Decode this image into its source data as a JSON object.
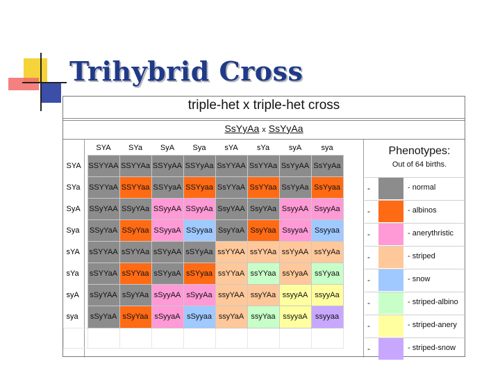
{
  "slide": {
    "title": "Trihybrid Cross"
  },
  "sheet": {
    "cross_title": "triple-het x triple-het cross",
    "parent1": "SsYyAa",
    "cross_symbol": "x",
    "parent2": "SsYyAa"
  },
  "phenotypes": {
    "title": "Phenotypes:",
    "subtitle": "Out of 64 births.",
    "items": [
      {
        "dash": "-",
        "label": "- normal",
        "color": "#8c8c8c"
      },
      {
        "dash": "-",
        "label": "- albinos",
        "color": "#ff6a14"
      },
      {
        "dash": "-",
        "label": "- anerythristic",
        "color": "#ff9ad6"
      },
      {
        "dash": "-",
        "label": "- striped",
        "color": "#ffc89a"
      },
      {
        "dash": "-",
        "label": "- snow",
        "color": "#9fc9ff"
      },
      {
        "dash": "-",
        "label": "- striped-albino",
        "color": "#c8ffc8"
      },
      {
        "dash": "-",
        "label": "- striped-anery",
        "color": "#ffffa0"
      },
      {
        "dash": "-",
        "label": "- striped-snow",
        "color": "#c8a8ff"
      }
    ]
  },
  "grid": {
    "col_headers": [
      "SYA",
      "SYa",
      "SyA",
      "Sya",
      "sYA",
      "sYa",
      "syA",
      "sya"
    ],
    "row_headers": [
      "SYA",
      "SYa",
      "SyA",
      "Sya",
      "sYA",
      "sYa",
      "syA",
      "sya"
    ],
    "rows": [
      [
        "SSYYAA",
        "SSYYAa",
        "SSYyAA",
        "SSYyAa",
        "SsYYAA",
        "SsYYAa",
        "SsYyAA",
        "SsYyAa"
      ],
      [
        "SSYYaA",
        "SSYYaa",
        "SSYyaA",
        "SSYyaa",
        "SsYYaA",
        "SsYYaa",
        "SsYyAa",
        "SsYyaa"
      ],
      [
        "SSyYAA",
        "SSyYAa",
        "SSyyAA",
        "SSyyAa",
        "SsyYAA",
        "SsyYAa",
        "SsyyAA",
        "SsyyAa"
      ],
      [
        "SSyYaA",
        "SSyYaa",
        "SSyyaA",
        "SSyyaa",
        "SsyYaA",
        "SsyYaa",
        "SsyyaA",
        "Ssyyaa"
      ],
      [
        "sSYYAA",
        "sSYYAa",
        "sSYyAA",
        "sSYyAa",
        "ssYYAA",
        "ssYYAa",
        "ssYyAA",
        "ssYyAa"
      ],
      [
        "sSYYaA",
        "sSYYaa",
        "sSYyaA",
        "sSYyaa",
        "ssYYaA",
        "ssYYaa",
        "ssYyaA",
        "ssYyaa"
      ],
      [
        "sSyYAA",
        "sSyYAa",
        "sSyyAA",
        "sSyyAa",
        "ssyYAA",
        "ssyYAa",
        "ssyyAA",
        "ssyyAa"
      ],
      [
        "sSyYaA",
        "sSyYaa",
        "sSyyaA",
        "sSyyaa",
        "ssyYaA",
        "ssyYaa",
        "ssyyaA",
        "ssyyaa"
      ]
    ],
    "cell_phenotype": [
      [
        0,
        0,
        0,
        0,
        0,
        0,
        0,
        0
      ],
      [
        0,
        1,
        0,
        1,
        0,
        1,
        0,
        1
      ],
      [
        0,
        0,
        2,
        2,
        0,
        0,
        2,
        2
      ],
      [
        0,
        1,
        2,
        4,
        0,
        1,
        2,
        4
      ],
      [
        0,
        0,
        0,
        0,
        3,
        3,
        3,
        3
      ],
      [
        0,
        1,
        0,
        1,
        3,
        5,
        3,
        5
      ],
      [
        0,
        0,
        2,
        2,
        3,
        3,
        6,
        6
      ],
      [
        0,
        1,
        2,
        4,
        3,
        5,
        6,
        7
      ]
    ]
  }
}
